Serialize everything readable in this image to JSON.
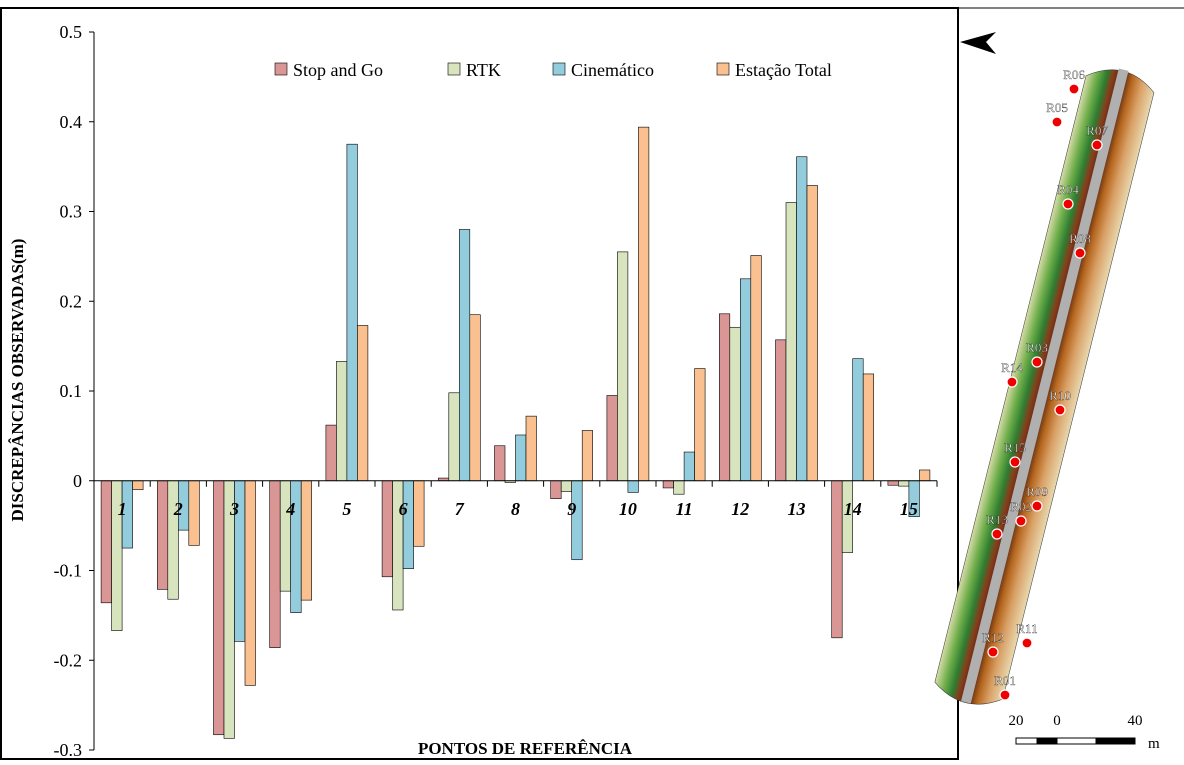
{
  "chart_data": {
    "type": "bar",
    "ylabel": "DISCREPÂNCIAS OBSERVADAS(m)",
    "xlabel": "PONTOS DE REFERÊNCIA",
    "categories": [
      "1",
      "2",
      "3",
      "4",
      "5",
      "6",
      "7",
      "8",
      "9",
      "10",
      "11",
      "12",
      "13",
      "14",
      "15"
    ],
    "series": [
      {
        "name": "Stop and Go",
        "color": "#d99694",
        "values": [
          -0.136,
          -0.121,
          -0.283,
          -0.186,
          0.062,
          -0.107,
          0.003,
          0.039,
          -0.02,
          0.095,
          -0.008,
          0.186,
          0.157,
          -0.175,
          -0.005
        ]
      },
      {
        "name": "RTK",
        "color": "#d7e4bd",
        "values": [
          -0.167,
          -0.132,
          -0.287,
          -0.123,
          0.133,
          -0.144,
          0.098,
          -0.002,
          -0.012,
          0.255,
          -0.015,
          0.171,
          0.31,
          -0.08,
          -0.006
        ]
      },
      {
        "name": "Cinemático",
        "color": "#93cddd",
        "values": [
          -0.075,
          -0.055,
          -0.179,
          -0.147,
          0.375,
          -0.098,
          0.28,
          0.051,
          -0.088,
          -0.013,
          0.032,
          0.225,
          0.361,
          0.136,
          -0.04
        ]
      },
      {
        "name": "Estação Total",
        "color": "#fac090",
        "values": [
          -0.01,
          -0.072,
          -0.228,
          -0.133,
          0.173,
          -0.073,
          0.185,
          0.072,
          0.056,
          0.394,
          0.125,
          0.251,
          0.329,
          0.119,
          0.012
        ]
      }
    ],
    "ylim": [
      -0.3,
      0.5
    ],
    "yticks": [
      -0.3,
      -0.2,
      -0.1,
      0,
      0.1,
      0.2,
      0.3,
      0.4,
      0.5
    ],
    "grid": false
  },
  "map": {
    "points": [
      "R06",
      "R05",
      "R07",
      "R04",
      "R08",
      "R03",
      "R14",
      "R10",
      "R15",
      "R09",
      "R02",
      "R13",
      "R11",
      "R12",
      "R01"
    ],
    "scale": [
      "20",
      "0",
      "40",
      "m"
    ]
  }
}
